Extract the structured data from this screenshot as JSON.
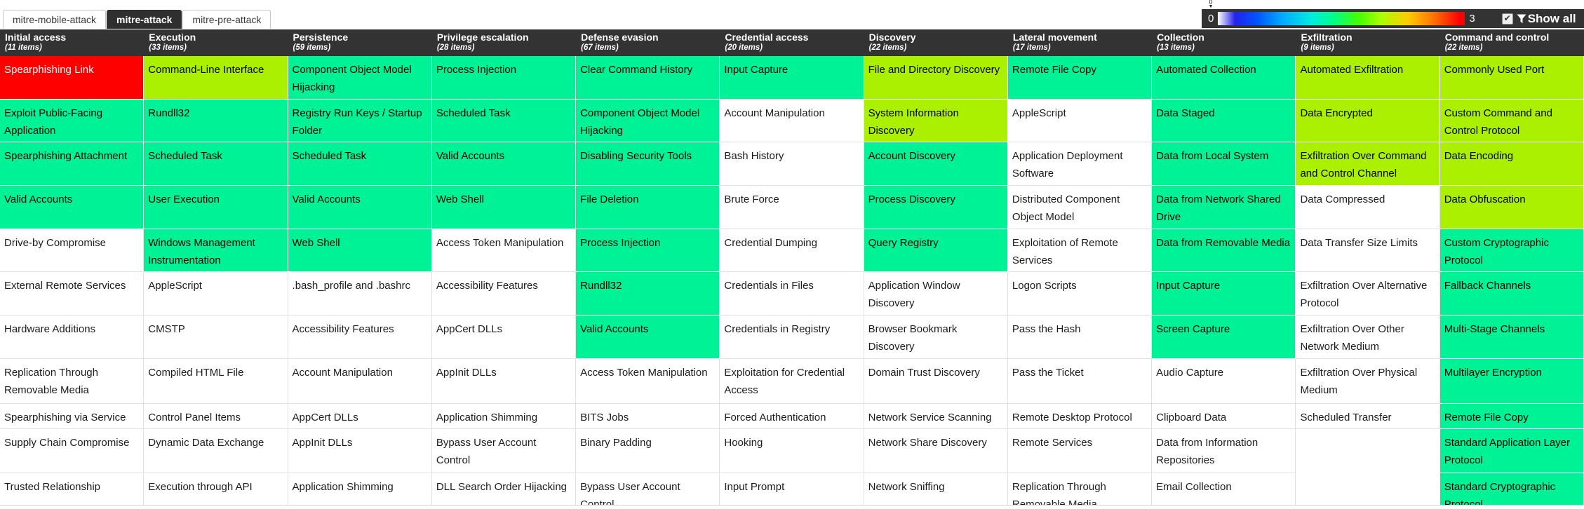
{
  "tabs": [
    {
      "label": "mitre-mobile-attack",
      "active": false
    },
    {
      "label": "mitre-attack",
      "active": true
    },
    {
      "label": "mitre-pre-attack",
      "active": false
    }
  ],
  "legend": {
    "min": "0",
    "max": "3",
    "slider_value": "0",
    "checkbox_checked": true,
    "show_all_label": "Show all"
  },
  "colors": {
    "header_bg": "#333333",
    "score_red": "#fe0000",
    "score_green": "#00f296",
    "score_lime": "#aaf000",
    "cell_plain": "#ffffff"
  },
  "columns": [
    {
      "name": "Initial access",
      "items": "(11 items)",
      "cells": [
        {
          "t": "Spearphishing Link",
          "c": "red"
        },
        {
          "t": "Exploit Public-Facing Application",
          "c": "green"
        },
        {
          "t": "Spearphishing Attachment",
          "c": "green"
        },
        {
          "t": "Valid Accounts",
          "c": "green"
        },
        {
          "t": "Drive-by Compromise",
          "c": "plain"
        },
        {
          "t": "External Remote Services",
          "c": "plain"
        },
        {
          "t": "Hardware Additions",
          "c": "plain"
        },
        {
          "t": "Replication Through Removable Media",
          "c": "plain"
        },
        {
          "t": "Spearphishing via Service",
          "c": "plain"
        },
        {
          "t": "Supply Chain Compromise",
          "c": "plain"
        },
        {
          "t": "Trusted Relationship",
          "c": "plain"
        }
      ]
    },
    {
      "name": "Execution",
      "items": "(33 items)",
      "cells": [
        {
          "t": "Command-Line Interface",
          "c": "lime"
        },
        {
          "t": "Rundll32",
          "c": "green"
        },
        {
          "t": "Scheduled Task",
          "c": "green"
        },
        {
          "t": "User Execution",
          "c": "green"
        },
        {
          "t": "Windows Management Instrumentation",
          "c": "green"
        },
        {
          "t": "AppleScript",
          "c": "plain"
        },
        {
          "t": "CMSTP",
          "c": "plain"
        },
        {
          "t": "Compiled HTML File",
          "c": "plain"
        },
        {
          "t": "Control Panel Items",
          "c": "plain"
        },
        {
          "t": "Dynamic Data Exchange",
          "c": "plain"
        },
        {
          "t": "Execution through API",
          "c": "plain"
        }
      ]
    },
    {
      "name": "Persistence",
      "items": "(59 items)",
      "cells": [
        {
          "t": "Component Object Model Hijacking",
          "c": "green"
        },
        {
          "t": "Registry Run Keys / Startup Folder",
          "c": "green"
        },
        {
          "t": "Scheduled Task",
          "c": "green"
        },
        {
          "t": "Valid Accounts",
          "c": "green"
        },
        {
          "t": "Web Shell",
          "c": "green"
        },
        {
          "t": ".bash_profile and .bashrc",
          "c": "plain"
        },
        {
          "t": "Accessibility Features",
          "c": "plain"
        },
        {
          "t": "Account Manipulation",
          "c": "plain"
        },
        {
          "t": "AppCert DLLs",
          "c": "plain"
        },
        {
          "t": "AppInit DLLs",
          "c": "plain"
        },
        {
          "t": "Application Shimming",
          "c": "plain"
        }
      ]
    },
    {
      "name": "Privilege escalation",
      "items": "(28 items)",
      "cells": [
        {
          "t": "Process Injection",
          "c": "green"
        },
        {
          "t": "Scheduled Task",
          "c": "green"
        },
        {
          "t": "Valid Accounts",
          "c": "green"
        },
        {
          "t": "Web Shell",
          "c": "green"
        },
        {
          "t": "Access Token Manipulation",
          "c": "plain"
        },
        {
          "t": "Accessibility Features",
          "c": "plain"
        },
        {
          "t": "AppCert DLLs",
          "c": "plain"
        },
        {
          "t": "AppInit DLLs",
          "c": "plain"
        },
        {
          "t": "Application Shimming",
          "c": "plain"
        },
        {
          "t": "Bypass User Account Control",
          "c": "plain"
        },
        {
          "t": "DLL Search Order Hijacking",
          "c": "plain"
        }
      ]
    },
    {
      "name": "Defense evasion",
      "items": "(67 items)",
      "cells": [
        {
          "t": "Clear Command History",
          "c": "green"
        },
        {
          "t": "Component Object Model Hijacking",
          "c": "green"
        },
        {
          "t": "Disabling Security Tools",
          "c": "green"
        },
        {
          "t": "File Deletion",
          "c": "green"
        },
        {
          "t": "Process Injection",
          "c": "green"
        },
        {
          "t": "Rundll32",
          "c": "green"
        },
        {
          "t": "Valid Accounts",
          "c": "green"
        },
        {
          "t": "Access Token Manipulation",
          "c": "plain"
        },
        {
          "t": "BITS Jobs",
          "c": "plain"
        },
        {
          "t": "Binary Padding",
          "c": "plain"
        },
        {
          "t": "Bypass User Account Control",
          "c": "plain"
        }
      ]
    },
    {
      "name": "Credential access",
      "items": "(20 items)",
      "cells": [
        {
          "t": "Input Capture",
          "c": "green"
        },
        {
          "t": "Account Manipulation",
          "c": "plain"
        },
        {
          "t": "Bash History",
          "c": "plain"
        },
        {
          "t": "Brute Force",
          "c": "plain"
        },
        {
          "t": "Credential Dumping",
          "c": "plain"
        },
        {
          "t": "Credentials in Files",
          "c": "plain"
        },
        {
          "t": "Credentials in Registry",
          "c": "plain"
        },
        {
          "t": "Exploitation for Credential Access",
          "c": "plain"
        },
        {
          "t": "Forced Authentication",
          "c": "plain"
        },
        {
          "t": "Hooking",
          "c": "plain"
        },
        {
          "t": "Input Prompt",
          "c": "plain"
        }
      ]
    },
    {
      "name": "Discovery",
      "items": "(22 items)",
      "cells": [
        {
          "t": "File and Directory Discovery",
          "c": "lime"
        },
        {
          "t": "System Information Discovery",
          "c": "lime"
        },
        {
          "t": "Account Discovery",
          "c": "green"
        },
        {
          "t": "Process Discovery",
          "c": "green"
        },
        {
          "t": "Query Registry",
          "c": "green"
        },
        {
          "t": "Application Window Discovery",
          "c": "plain"
        },
        {
          "t": "Browser Bookmark Discovery",
          "c": "plain"
        },
        {
          "t": "Domain Trust Discovery",
          "c": "plain"
        },
        {
          "t": "Network Service Scanning",
          "c": "plain"
        },
        {
          "t": "Network Share Discovery",
          "c": "plain"
        },
        {
          "t": "Network Sniffing",
          "c": "plain"
        }
      ]
    },
    {
      "name": "Lateral movement",
      "items": "(17 items)",
      "cells": [
        {
          "t": "Remote File Copy",
          "c": "green"
        },
        {
          "t": "AppleScript",
          "c": "plain"
        },
        {
          "t": "Application Deployment Software",
          "c": "plain"
        },
        {
          "t": "Distributed Component Object Model",
          "c": "plain"
        },
        {
          "t": "Exploitation of Remote Services",
          "c": "plain"
        },
        {
          "t": "Logon Scripts",
          "c": "plain"
        },
        {
          "t": "Pass the Hash",
          "c": "plain"
        },
        {
          "t": "Pass the Ticket",
          "c": "plain"
        },
        {
          "t": "Remote Desktop Protocol",
          "c": "plain"
        },
        {
          "t": "Remote Services",
          "c": "plain"
        },
        {
          "t": "Replication Through Removable Media",
          "c": "plain"
        }
      ]
    },
    {
      "name": "Collection",
      "items": "(13 items)",
      "cells": [
        {
          "t": "Automated Collection",
          "c": "green"
        },
        {
          "t": "Data Staged",
          "c": "green"
        },
        {
          "t": "Data from Local System",
          "c": "green"
        },
        {
          "t": "Data from Network Shared Drive",
          "c": "green"
        },
        {
          "t": "Data from Removable Media",
          "c": "green"
        },
        {
          "t": "Input Capture",
          "c": "green"
        },
        {
          "t": "Screen Capture",
          "c": "green"
        },
        {
          "t": "Audio Capture",
          "c": "plain"
        },
        {
          "t": "Clipboard Data",
          "c": "plain"
        },
        {
          "t": "Data from Information Repositories",
          "c": "plain"
        },
        {
          "t": "Email Collection",
          "c": "plain"
        }
      ]
    },
    {
      "name": "Exfiltration",
      "items": "(9 items)",
      "cells": [
        {
          "t": "Automated Exfiltration",
          "c": "lime"
        },
        {
          "t": "Data Encrypted",
          "c": "lime"
        },
        {
          "t": "Exfiltration Over Command and Control Channel",
          "c": "lime"
        },
        {
          "t": "Data Compressed",
          "c": "plain"
        },
        {
          "t": "Data Transfer Size Limits",
          "c": "plain"
        },
        {
          "t": "Exfiltration Over Alternative Protocol",
          "c": "plain"
        },
        {
          "t": "Exfiltration Over Other Network Medium",
          "c": "plain"
        },
        {
          "t": "Exfiltration Over Physical Medium",
          "c": "plain"
        },
        {
          "t": "Scheduled Transfer",
          "c": "plain"
        },
        {
          "t": "",
          "c": "empty"
        },
        {
          "t": "",
          "c": "empty"
        }
      ]
    },
    {
      "name": "Command and control",
      "items": "(22 items)",
      "cells": [
        {
          "t": "Commonly Used Port",
          "c": "lime"
        },
        {
          "t": "Custom Command and Control Protocol",
          "c": "lime"
        },
        {
          "t": "Data Encoding",
          "c": "lime"
        },
        {
          "t": "Data Obfuscation",
          "c": "lime"
        },
        {
          "t": "Custom Cryptographic Protocol",
          "c": "green"
        },
        {
          "t": "Fallback Channels",
          "c": "green"
        },
        {
          "t": "Multi-Stage Channels",
          "c": "green"
        },
        {
          "t": "Multilayer Encryption",
          "c": "green"
        },
        {
          "t": "Remote File Copy",
          "c": "green"
        },
        {
          "t": "Standard Application Layer Protocol",
          "c": "green"
        },
        {
          "t": "Standard Cryptographic Protocol",
          "c": "green"
        }
      ]
    }
  ]
}
